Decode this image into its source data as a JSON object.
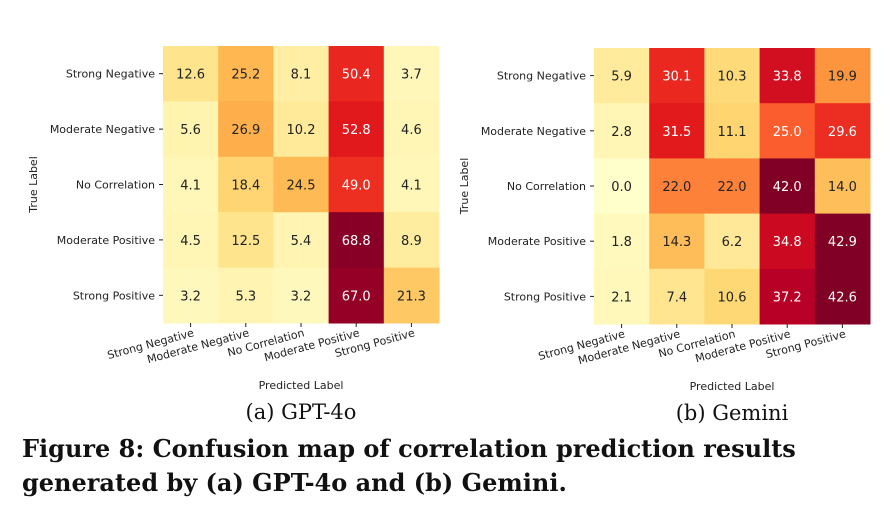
{
  "figure": {
    "caption": "Figure 8: Confusion map of correlation prediction results generated by (a) GPT-4o and (b) Gemini."
  },
  "chart_data": [
    {
      "type": "heatmap",
      "subcaption": "(a) GPT-4o",
      "xlabel": "Predicted Label",
      "ylabel": "True Label",
      "x_categories": [
        "Strong Negative",
        "Moderate Negative",
        "No Correlation",
        "Moderate Positive",
        "Strong Positive"
      ],
      "y_categories": [
        "Strong Negative",
        "Moderate Negative",
        "No Correlation",
        "Moderate Positive",
        "Strong Positive"
      ],
      "values": [
        [
          12.6,
          25.2,
          8.1,
          50.4,
          3.7
        ],
        [
          5.6,
          26.9,
          10.2,
          52.8,
          4.6
        ],
        [
          4.1,
          18.4,
          24.5,
          49.0,
          4.1
        ],
        [
          4.5,
          12.5,
          5.4,
          68.8,
          8.9
        ],
        [
          3.2,
          5.3,
          3.2,
          67.0,
          21.3
        ]
      ],
      "colormap": "YlOrRd",
      "vmin": 0,
      "vmax": 70,
      "colorbar": false
    },
    {
      "type": "heatmap",
      "subcaption": "(b) Gemini",
      "xlabel": "Predicted Label",
      "ylabel": "True Label",
      "x_categories": [
        "Strong Negative",
        "Moderate Negative",
        "No Correlation",
        "Moderate Positive",
        "Strong Positive"
      ],
      "y_categories": [
        "Strong Negative",
        "Moderate Negative",
        "No Correlation",
        "Moderate Positive",
        "Strong Positive"
      ],
      "values": [
        [
          5.9,
          30.1,
          10.3,
          33.8,
          19.9
        ],
        [
          2.8,
          31.5,
          11.1,
          25.0,
          29.6
        ],
        [
          0.0,
          22.0,
          22.0,
          42.0,
          14.0
        ],
        [
          1.8,
          14.3,
          6.2,
          34.8,
          42.9
        ],
        [
          2.1,
          7.4,
          10.6,
          37.2,
          42.6
        ]
      ],
      "colormap": "YlOrRd",
      "vmin": 0,
      "vmax": 42,
      "colorbar": false
    }
  ]
}
